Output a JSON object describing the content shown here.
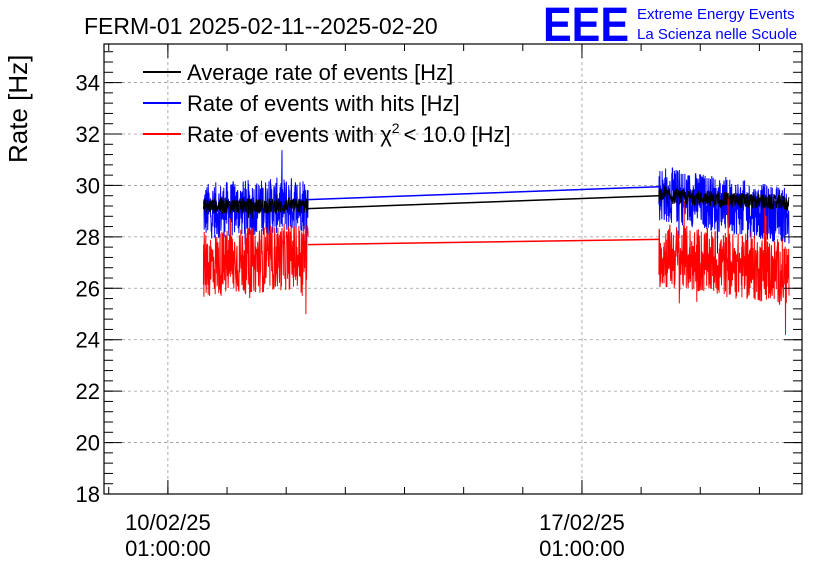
{
  "header": {
    "title": "FERM-01 2025-02-11--2025-02-20",
    "logo_mark": "EEE",
    "logo_line1": "Extreme Energy Events",
    "logo_line2": "La Scienza nelle Scuole",
    "logo_color": "#0000ff"
  },
  "chart_data": {
    "type": "line",
    "ylabel": "Rate [Hz]",
    "xlabel": "",
    "ylim": [
      18,
      35.5
    ],
    "xlim": [
      -1.08,
      10.72
    ],
    "x_units": "days after 10/02/25 01:00:00",
    "x_ticks": [
      {
        "x": 0,
        "line1": "10/02/25",
        "line2": "01:00:00"
      },
      {
        "x": 7,
        "line1": "17/02/25",
        "line2": "01:00:00"
      }
    ],
    "y_ticks": [
      18,
      20,
      22,
      24,
      26,
      28,
      30,
      32,
      34
    ],
    "grid": true,
    "legend_position": "top-left",
    "segments": [
      {
        "x_start": 0.6,
        "x_end": 2.37
      },
      {
        "x_start": 8.3,
        "x_end": 10.5
      }
    ],
    "series": [
      {
        "name": "Average rate of events [Hz]",
        "color": "#000000",
        "mean": [
          29.2,
          29.2,
          29.6,
          29.3
        ],
        "x": [
          0.6,
          2.37,
          8.3,
          10.5
        ],
        "noise": 0.3,
        "points": [
          [
            2.37,
            29.1
          ],
          [
            8.3,
            29.6
          ]
        ]
      },
      {
        "name": "Rate of events with hits [Hz]",
        "color": "#0000ff",
        "mean": [
          29.0,
          29.3,
          29.7,
          28.8
        ],
        "x": [
          0.6,
          2.37,
          8.3,
          10.5
        ],
        "noise": 1.1,
        "points": [
          [
            2.37,
            29.45
          ],
          [
            8.3,
            29.95
          ]
        ]
      },
      {
        "name": "Rate of events with χ² < 10.0 [Hz]",
        "legend_text": "Rate of events with",
        "legend_chi": "χ",
        "legend_sup": "2",
        "legend_tail": "< 10.0 [Hz]",
        "color": "#ff0000",
        "mean": [
          26.9,
          27.3,
          27.3,
          26.6
        ],
        "x": [
          0.6,
          2.37,
          8.3,
          10.5
        ],
        "noise": 1.3,
        "points": [
          [
            2.37,
            27.7
          ],
          [
            8.3,
            27.9
          ]
        ]
      }
    ]
  }
}
